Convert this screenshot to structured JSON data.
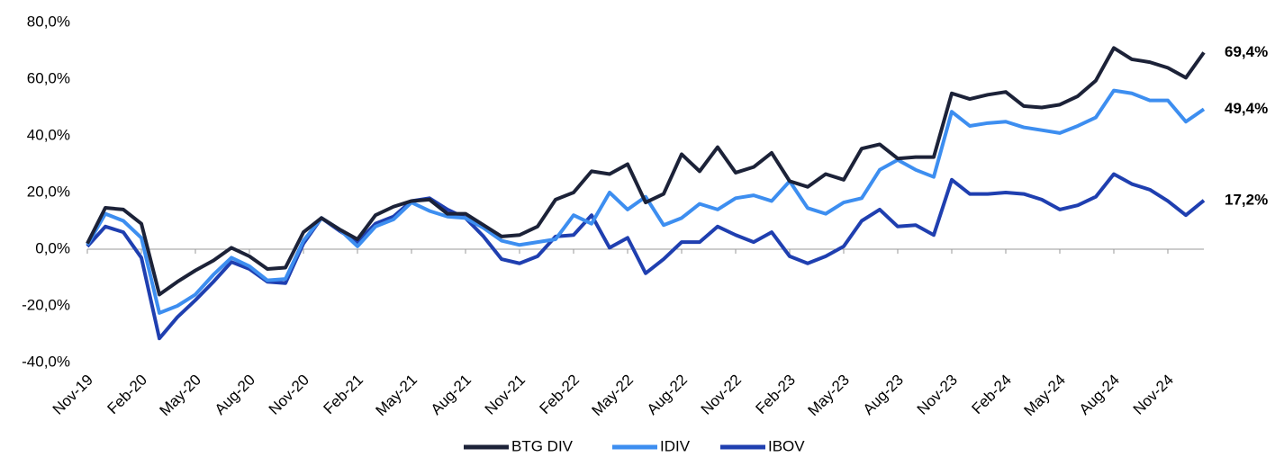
{
  "chart_data": {
    "type": "line",
    "categories": [
      "Nov-19",
      null,
      null,
      "Feb-20",
      null,
      null,
      "May-20",
      null,
      null,
      "Aug-20",
      null,
      null,
      "Nov-20",
      null,
      null,
      "Feb-21",
      null,
      null,
      "May-21",
      null,
      null,
      "Aug-21",
      null,
      null,
      "Nov-21",
      null,
      null,
      "Feb-22",
      null,
      null,
      "May-22",
      null,
      null,
      "Aug-22",
      null,
      null,
      "Nov-22",
      null,
      null,
      "Feb-23",
      null,
      null,
      "May-23",
      null,
      null,
      "Aug-23",
      null,
      null,
      "Nov-23",
      null,
      null,
      "Feb-24",
      null,
      null,
      "May-24",
      null,
      null,
      "Aug-24",
      null,
      null,
      "Nov-24",
      null,
      null
    ],
    "series": [
      {
        "name": "BTG DIV",
        "color": "#1c2238",
        "values": [
          2,
          14.6,
          14,
          9,
          -16,
          -11.5,
          -7.5,
          -4,
          0.5,
          -2.5,
          -7,
          -6.5,
          6,
          11,
          7,
          3.5,
          12,
          15,
          17,
          17.5,
          12.5,
          12.5,
          8.5,
          4.5,
          5,
          8,
          17.5,
          20,
          27.5,
          26.5,
          30,
          16.5,
          19.5,
          33.5,
          27.5,
          36,
          27,
          29,
          34,
          24,
          22,
          26.5,
          24.5,
          35.5,
          37,
          32,
          32.5,
          32.5,
          55,
          53,
          54.5,
          55.5,
          50.5,
          50,
          51,
          54,
          59.5,
          71,
          67,
          66,
          64,
          60.5,
          69.4
        ],
        "value_labels": [
          null,
          null,
          null,
          null,
          null,
          null,
          null,
          null,
          null,
          null,
          null,
          null,
          null,
          null,
          null,
          null,
          null,
          null,
          null,
          null,
          null,
          null,
          null,
          null,
          null,
          null,
          null,
          null,
          null,
          null,
          null,
          null,
          null,
          null,
          null,
          null,
          null,
          null,
          null,
          null,
          null,
          null,
          null,
          null,
          null,
          null,
          null,
          null,
          null,
          null,
          null,
          null,
          null,
          null,
          null,
          null,
          null,
          null,
          null,
          null,
          null,
          null,
          "69,4%"
        ]
      },
      {
        "name": "IDIV",
        "color": "#3d8ef0",
        "values": [
          1.5,
          12.5,
          10,
          4,
          -22.5,
          -20,
          -16,
          -9,
          -3,
          -6,
          -11,
          -10.5,
          3,
          11,
          7,
          1,
          8,
          10.5,
          16.5,
          13.5,
          11.5,
          11,
          7.5,
          3,
          1.5,
          2.5,
          3.5,
          12,
          9,
          20,
          14,
          18.5,
          8.5,
          11,
          16,
          14,
          18,
          19,
          17,
          24,
          14.5,
          12.5,
          16.5,
          18,
          28,
          31.5,
          28,
          25.5,
          48.5,
          43.5,
          44.5,
          45,
          43,
          42,
          41,
          43.5,
          46.5,
          56,
          55,
          52.5,
          52.5,
          45,
          49.4
        ],
        "value_labels": [
          null,
          null,
          null,
          null,
          null,
          null,
          null,
          null,
          null,
          null,
          null,
          null,
          null,
          null,
          null,
          null,
          null,
          null,
          null,
          null,
          null,
          null,
          null,
          null,
          null,
          null,
          null,
          null,
          null,
          null,
          null,
          null,
          null,
          null,
          null,
          null,
          null,
          null,
          null,
          null,
          null,
          null,
          null,
          null,
          null,
          null,
          null,
          null,
          null,
          null,
          null,
          null,
          null,
          null,
          null,
          null,
          null,
          null,
          null,
          null,
          null,
          null,
          "49,4%"
        ]
      },
      {
        "name": "IBOV",
        "color": "#1f3fb0",
        "values": [
          1,
          8,
          6,
          -3,
          -31.5,
          -24,
          -18,
          -11.5,
          -4.5,
          -7,
          -11.5,
          -12,
          2,
          11,
          6.5,
          2.5,
          9,
          11.5,
          17,
          18,
          14,
          11,
          4.5,
          -3.5,
          -5,
          -2.5,
          4.5,
          5,
          12,
          0.5,
          4,
          -8.5,
          -3.5,
          2.5,
          2.5,
          8,
          5,
          2.5,
          6,
          -2.5,
          -5,
          -2.5,
          1,
          10,
          14,
          8,
          8.5,
          5,
          24.5,
          19.5,
          19.5,
          20,
          19.5,
          17.5,
          14,
          15.5,
          18.5,
          26.5,
          23,
          21,
          17,
          12,
          17.2
        ],
        "value_labels": [
          null,
          null,
          null,
          null,
          null,
          null,
          null,
          null,
          null,
          null,
          null,
          null,
          null,
          null,
          null,
          null,
          null,
          null,
          null,
          null,
          null,
          null,
          null,
          null,
          null,
          null,
          null,
          null,
          null,
          null,
          null,
          null,
          null,
          null,
          null,
          null,
          null,
          null,
          null,
          null,
          null,
          null,
          null,
          null,
          null,
          null,
          null,
          null,
          null,
          null,
          null,
          null,
          null,
          null,
          null,
          null,
          null,
          null,
          null,
          null,
          null,
          null,
          "17,2%"
        ]
      }
    ],
    "ylim": [
      -40,
      80
    ],
    "yticks": [
      {
        "value": -40,
        "label": "-40,0%"
      },
      {
        "value": -20,
        "label": "-20,0%"
      },
      {
        "value": 0,
        "label": "0,0%"
      },
      {
        "value": 20,
        "label": "20,0%"
      },
      {
        "value": 40,
        "label": "40,0%"
      },
      {
        "value": 60,
        "label": "60,0%"
      },
      {
        "value": 80,
        "label": "80,0%"
      }
    ],
    "grid": false,
    "legend": "bottom"
  }
}
